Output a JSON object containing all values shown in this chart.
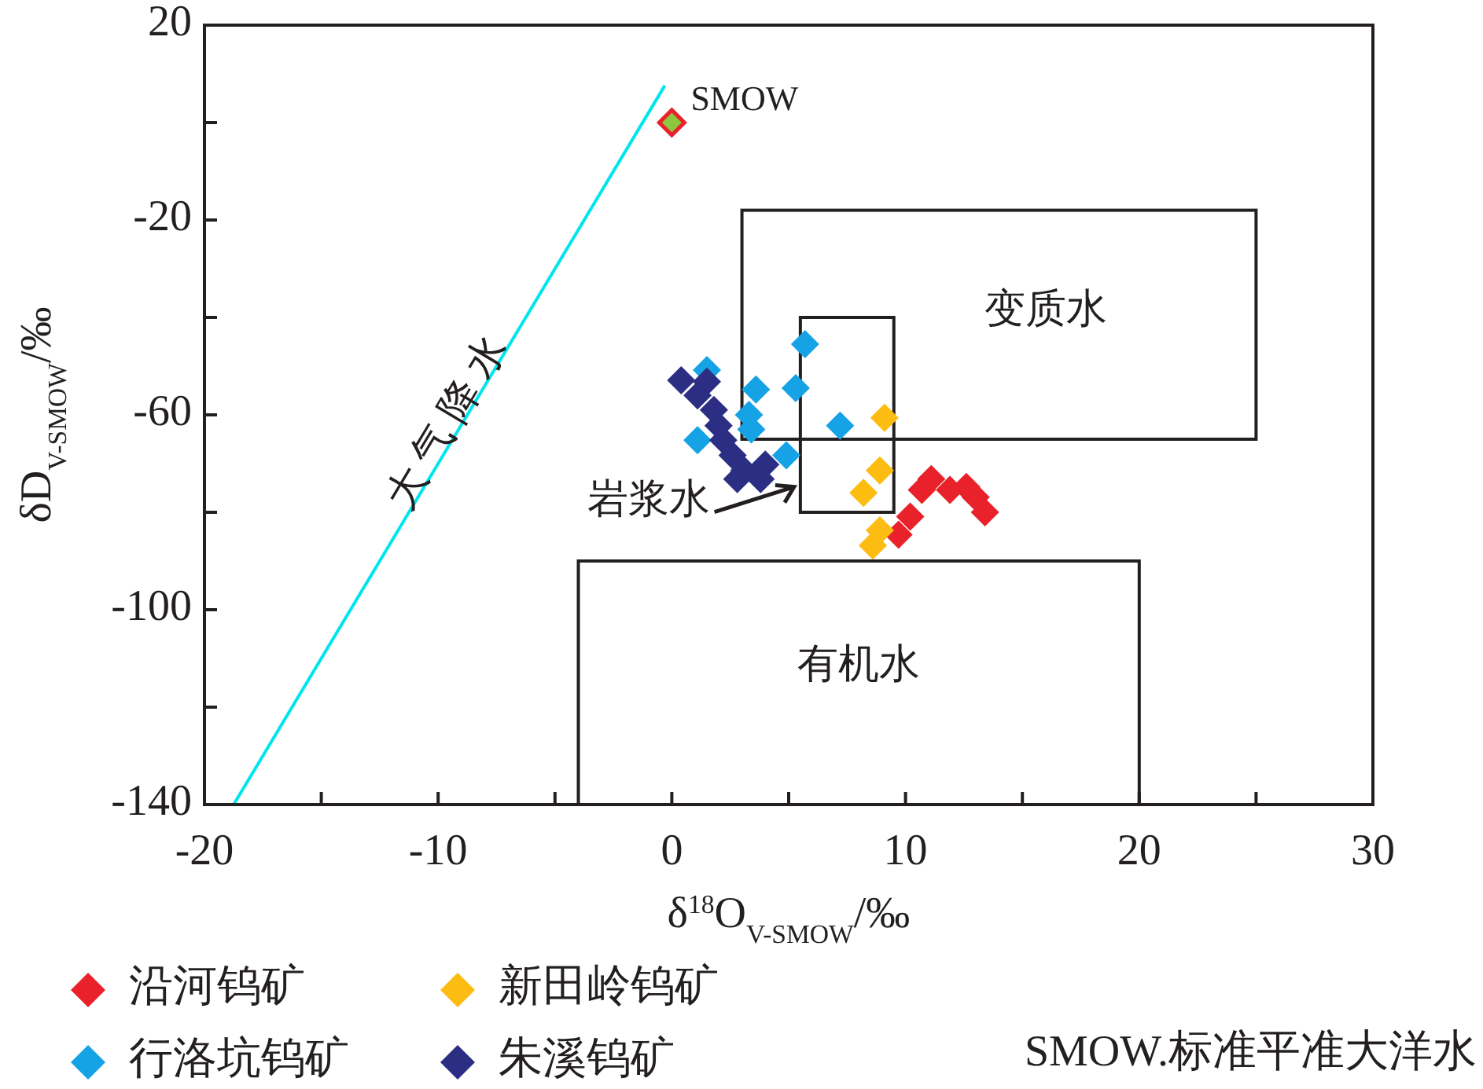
{
  "chart_data": {
    "type": "scatter",
    "xlabel": "δ$^{18}$O$_{V-SMOW}$/‰",
    "ylabel": "δD$_{V-SMOW}$/‰",
    "xlim": [
      -20,
      30
    ],
    "ylim": [
      -140,
      20
    ],
    "xticks": [
      -20,
      {
        "value": -15,
        "label": null
      },
      -10,
      {
        "value": -5,
        "label": null
      },
      0,
      {
        "value": 5,
        "label": null
      },
      10,
      {
        "value": 15,
        "label": null
      },
      20,
      {
        "value": 25,
        "label": null
      },
      30
    ],
    "yticks": [
      -140,
      {
        "value": -120,
        "label": null
      },
      -100,
      {
        "value": -80,
        "label": null
      },
      -60,
      {
        "value": -40,
        "label": null
      },
      -20,
      {
        "value": 0,
        "label": null
      },
      20
    ],
    "marker": "diamond",
    "legend": "bottom",
    "grid": false,
    "series": [
      {
        "type": "line",
        "marker": "none",
        "color": "#00e5ee",
        "x": [
          -18.75,
          -0.3
        ],
        "values": [
          -140,
          7.6
        ]
      },
      {
        "name": "沿河钨矿",
        "color": "#e8212b",
        "x": [
          9.7,
          10.2,
          10.7,
          11.1,
          11.9,
          12.6,
          13.0,
          13.4
        ],
        "values": [
          -84.6,
          -80.9,
          -75.4,
          -73.2,
          -75.4,
          -74.8,
          -76.9,
          -80
        ]
      },
      {
        "name": "新田岭钨矿",
        "color": "#fcbc12",
        "x": [
          9.1,
          8.9,
          8.2,
          8.9,
          8.6
        ],
        "values": [
          -60.6,
          -71.4,
          -76,
          -83.7,
          -86.8
        ]
      },
      {
        "name": "行洛坑钨矿",
        "color": "#16a3e6",
        "x": [
          5.7,
          5.3,
          7.2,
          3.6,
          3.3,
          3.4,
          4.9,
          1.1,
          1.5
        ],
        "values": [
          -45.5,
          -54.5,
          -62.2,
          -54.8,
          -60,
          -63,
          -68.3,
          -65.2,
          -50.8
        ]
      },
      {
        "name": "朱溪钨矿",
        "color": "#2b2e83",
        "x": [
          0.4,
          1.5,
          1.1,
          1.8,
          2.0,
          2.2,
          2.6,
          3.1,
          3.8,
          4.0,
          2.8
        ],
        "values": [
          -52.9,
          -53.2,
          -56,
          -59,
          -62.2,
          -65.2,
          -68.3,
          -71.4,
          -73.2,
          -70.2,
          -73.2
        ]
      },
      {
        "name": "SMOW",
        "color": "#8dc63f",
        "x": [
          0
        ],
        "values": [
          0
        ]
      }
    ],
    "annotations": [
      "有机水",
      "变质水",
      "岩浆水",
      "大 气 降 水",
      "SMOW.标准平准大洋水"
    ]
  }
}
